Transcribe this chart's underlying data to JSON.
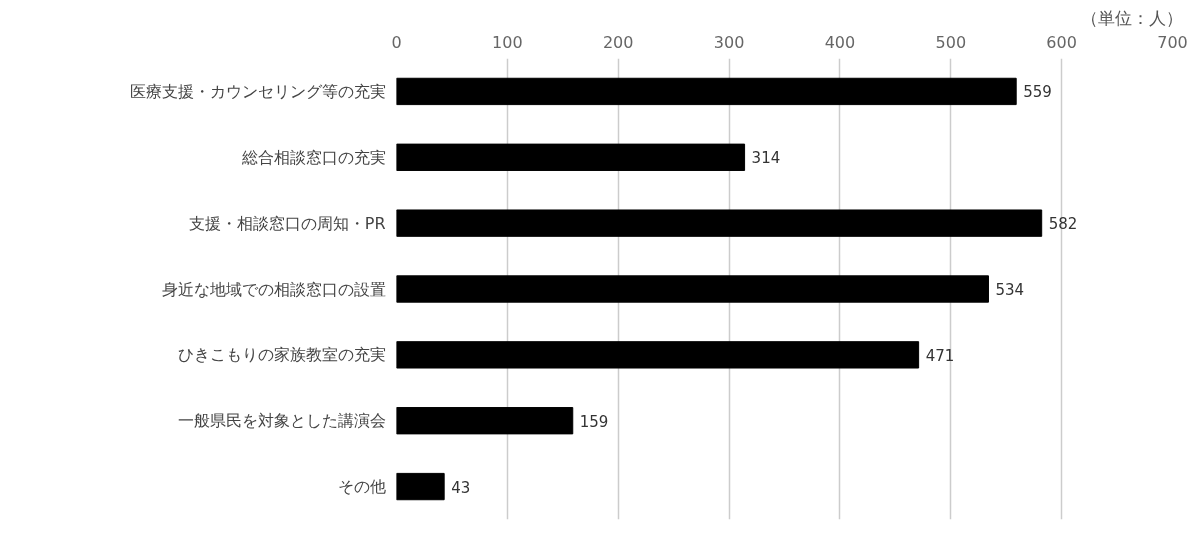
{
  "chart_data": {
    "type": "bar",
    "orientation": "horizontal",
    "categories": [
      "医療支援・カウンセリング等の充実",
      "総合相談窓口の充実",
      "支援・相談窓口の周知・PR",
      "身近な地域での相談窓口の設置",
      "ひきこもりの家族教室の充実",
      "一般県民を対象とした講演会",
      "その他"
    ],
    "values": [
      559,
      314,
      582,
      534,
      471,
      159,
      43
    ],
    "color": "#000000",
    "xlim": [
      0,
      700
    ],
    "xticks": [
      0,
      100,
      200,
      300,
      400,
      500,
      600,
      700
    ],
    "grid": "x",
    "data_labels": true,
    "annotations": [
      "（単位：人）"
    ]
  }
}
